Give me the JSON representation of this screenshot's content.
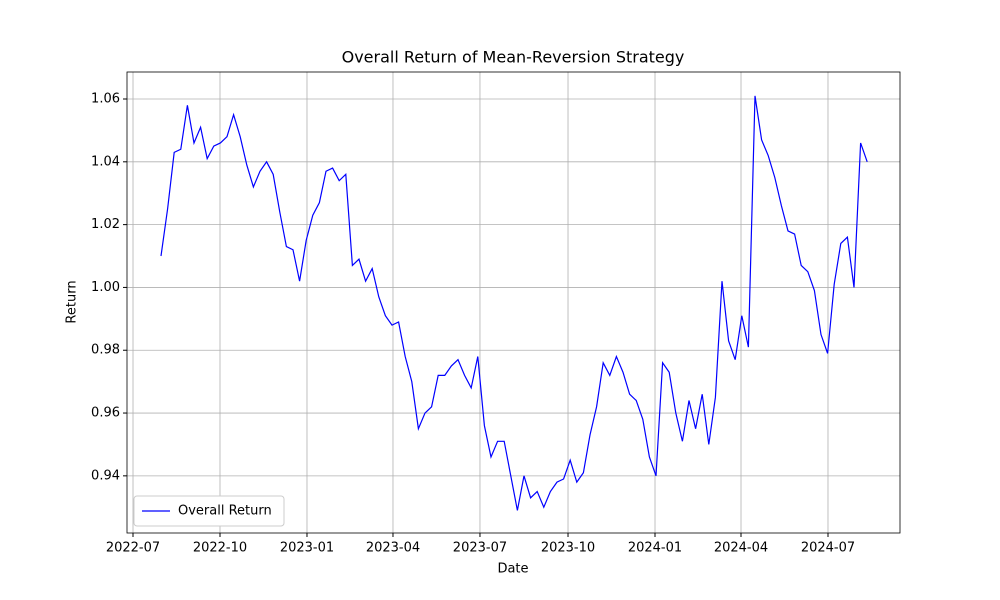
{
  "chart_data": {
    "type": "line",
    "title": "Overall Return of Mean-Reversion Strategy",
    "xlabel": "Date",
    "ylabel": "Return",
    "series": [
      {
        "name": "Overall Return",
        "color": "#0000ff",
        "values": [
          1.01,
          1.025,
          1.043,
          1.044,
          1.058,
          1.046,
          1.051,
          1.041,
          1.045,
          1.046,
          1.048,
          1.055,
          1.048,
          1.039,
          1.032,
          1.037,
          1.04,
          1.036,
          1.024,
          1.013,
          1.012,
          1.002,
          1.015,
          1.023,
          1.027,
          1.037,
          1.038,
          1.034,
          1.036,
          1.007,
          1.009,
          1.002,
          1.006,
          0.997,
          0.991,
          0.988,
          0.989,
          0.978,
          0.97,
          0.955,
          0.96,
          0.962,
          0.972,
          0.972,
          0.975,
          0.977,
          0.972,
          0.968,
          0.978,
          0.956,
          0.946,
          0.951,
          0.951,
          0.94,
          0.929,
          0.94,
          0.933,
          0.935,
          0.93,
          0.935,
          0.938,
          0.939,
          0.945,
          0.938,
          0.941,
          0.953,
          0.962,
          0.976,
          0.972,
          0.978,
          0.973,
          0.966,
          0.964,
          0.958,
          0.946,
          0.94,
          0.976,
          0.973,
          0.96,
          0.951,
          0.964,
          0.955,
          0.966,
          0.95,
          0.965,
          1.002,
          0.983,
          0.977,
          0.991,
          0.981,
          1.061,
          1.047,
          1.042,
          1.035,
          1.026,
          1.018,
          1.017,
          1.007,
          1.005,
          0.999,
          0.985,
          0.979,
          1.001,
          1.014,
          1.016,
          1.0,
          1.046,
          1.04
        ]
      }
    ],
    "xlim": [
      -5.15,
      111.97
    ],
    "xticks": [
      {
        "value": -4.24,
        "label": "2022-07"
      },
      {
        "value": 8.94,
        "label": "2022-10"
      },
      {
        "value": 22.12,
        "label": "2023-01"
      },
      {
        "value": 35.15,
        "label": "2023-04"
      },
      {
        "value": 48.33,
        "label": "2023-07"
      },
      {
        "value": 61.67,
        "label": "2023-10"
      },
      {
        "value": 74.85,
        "label": "2024-01"
      },
      {
        "value": 87.88,
        "label": "2024-04"
      },
      {
        "value": 101.06,
        "label": "2024-07"
      }
    ],
    "ylim": [
      0.9218,
      1.0686
    ],
    "yticks": [
      0.94,
      0.96,
      0.98,
      {
        "value": 1,
        "label": "1.00"
      },
      1.02,
      1.04,
      1.06
    ],
    "grid": true,
    "legend": "lower left"
  }
}
